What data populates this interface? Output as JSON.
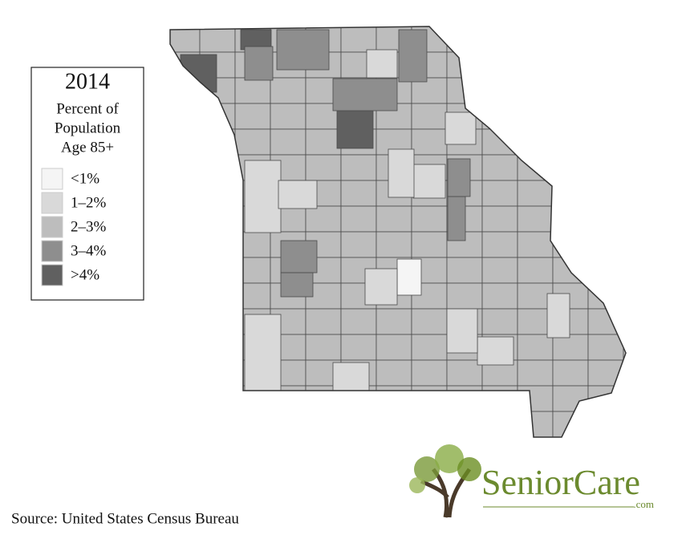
{
  "legend": {
    "title": "2014",
    "subtitle": [
      "Percent of",
      "Population",
      "Age 85+"
    ],
    "items": [
      {
        "label": "<1%",
        "color": "#f5f5f5"
      },
      {
        "label": "1–2%",
        "color": "#d9d9d9"
      },
      {
        "label": "2–3%",
        "color": "#bdbdbd"
      },
      {
        "label": "3–4%",
        "color": "#8e8e8e"
      },
      {
        "label": ">4%",
        "color": "#606060"
      }
    ]
  },
  "source": "Source: United States Census Bureau",
  "logo": {
    "name": "SeniorCare",
    "suffix": ".com"
  }
}
